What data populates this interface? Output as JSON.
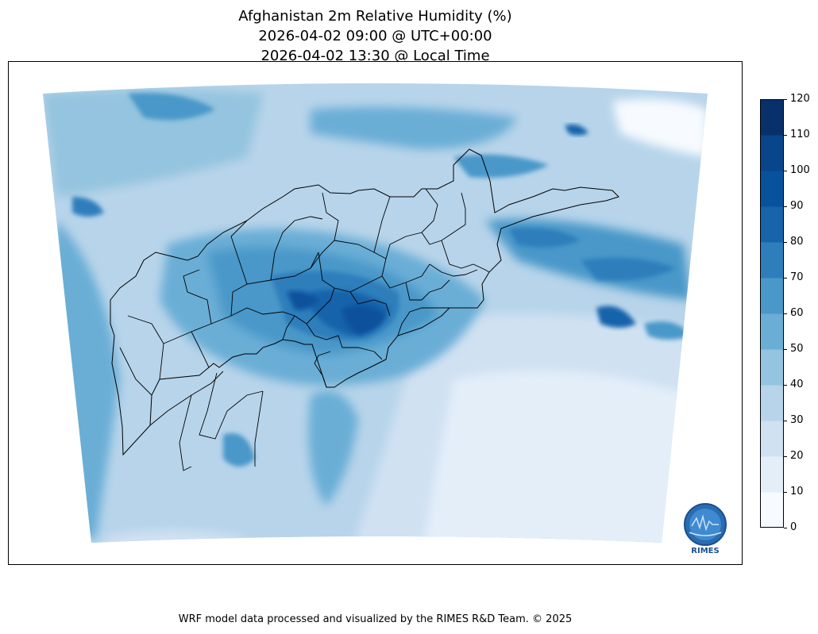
{
  "title": {
    "line1": "Afghanistan 2m Relative Humidity (%)",
    "line2": "2026-04-02 09:00 @ UTC+00:00",
    "line3": "2026-04-02 13:30 @ Local Time"
  },
  "colorbar": {
    "ticks": [
      "0",
      "10",
      "20",
      "30",
      "40",
      "50",
      "60",
      "70",
      "80",
      "90",
      "100",
      "110",
      "120"
    ],
    "levels": [
      0,
      10,
      20,
      30,
      40,
      50,
      60,
      70,
      80,
      90,
      100,
      110,
      120
    ],
    "colors": [
      "#f7fbff",
      "#e3eef9",
      "#d0e1f2",
      "#b7d4ea",
      "#94c4df",
      "#6aaed6",
      "#4a98c9",
      "#2e7ebc",
      "#1764ab",
      "#08519c",
      "#08458a",
      "#08306b"
    ]
  },
  "logo": {
    "text": "RIMES",
    "color": "#1a4f8f"
  },
  "footer": "WRF model data processed and visualized by the RIMES R&D Team. © 2025",
  "map": {
    "region": "Afghanistan",
    "border_color": "#000000"
  }
}
